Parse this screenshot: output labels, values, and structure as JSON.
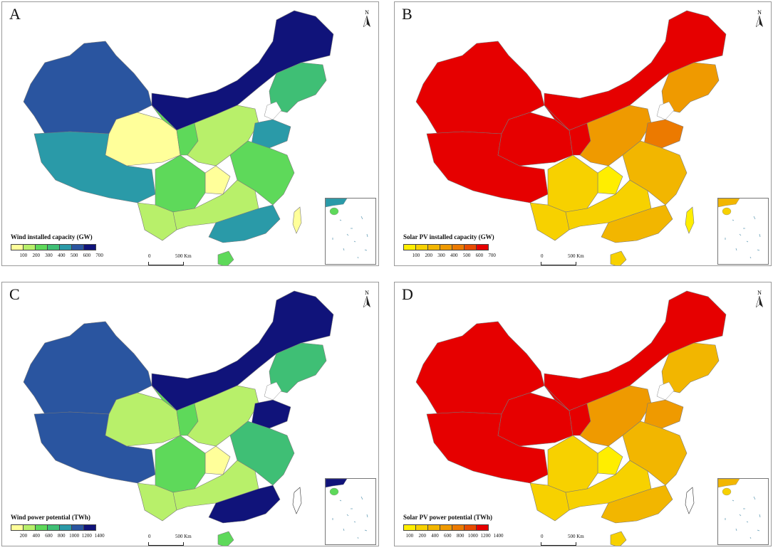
{
  "panels": [
    {
      "letter": "A",
      "legend_title": "Wind installed capacity (GW)",
      "ticks": [
        "100",
        "200",
        "300",
        "400",
        "500",
        "600",
        "700"
      ],
      "palette": [
        "#ffff9a",
        "#b8f06a",
        "#5ed95a",
        "#3fbf75",
        "#2a9aa8",
        "#2a55a0",
        "#10137a"
      ],
      "region_classes": {
        "west": 6,
        "tibet": 5,
        "qinghai": 1,
        "innerMongolia": 7,
        "northeast": 4,
        "gansu": 3,
        "northChina": 2,
        "east": 3,
        "southwest": 3,
        "south": 2,
        "guangdong": 5,
        "hainan": 3,
        "taiwan": 1,
        "shandong": 5,
        "yunnan": 2,
        "center": 1
      }
    },
    {
      "letter": "B",
      "legend_title": "Solar PV installed capacity (GW)",
      "ticks": [
        "100",
        "200",
        "300",
        "400",
        "500",
        "600",
        "700"
      ],
      "palette": [
        "#ffee00",
        "#f7d100",
        "#f2b600",
        "#ef9a00",
        "#ec7a00",
        "#e84c00",
        "#e60000"
      ],
      "region_classes": {
        "west": 7,
        "tibet": 7,
        "qinghai": 7,
        "innerMongolia": 7,
        "northeast": 4,
        "gansu": 7,
        "northChina": 4,
        "east": 3,
        "southwest": 2,
        "south": 2,
        "guangdong": 3,
        "hainan": 2,
        "taiwan": 1,
        "shandong": 5,
        "yunnan": 2,
        "center": 1
      }
    },
    {
      "letter": "C",
      "legend_title": "Wind power potential (TWh)",
      "ticks": [
        "200",
        "400",
        "600",
        "800",
        "1000",
        "1200",
        "1400"
      ],
      "palette": [
        "#ffff9a",
        "#b8f06a",
        "#5ed95a",
        "#3fbf75",
        "#2a9aa8",
        "#2a55a0",
        "#10137a"
      ],
      "region_classes": {
        "west": 6,
        "tibet": 6,
        "qinghai": 2,
        "innerMongolia": 7,
        "northeast": 4,
        "gansu": 3,
        "northChina": 2,
        "east": 4,
        "southwest": 3,
        "south": 2,
        "guangdong": 7,
        "hainan": 3,
        "taiwan": 0,
        "shandong": 7,
        "yunnan": 2,
        "center": 1
      }
    },
    {
      "letter": "D",
      "legend_title": "Solar PV power potential (TWh)",
      "ticks": [
        "100",
        "200",
        "400",
        "600",
        "800",
        "1000",
        "1200",
        "1400"
      ],
      "palette": [
        "#ffee00",
        "#f7d100",
        "#f2b600",
        "#ef9a00",
        "#ec7a00",
        "#e84c00",
        "#e60000"
      ],
      "region_classes": {
        "west": 7,
        "tibet": 7,
        "qinghai": 7,
        "innerMongolia": 7,
        "northeast": 3,
        "gansu": 7,
        "northChina": 4,
        "east": 3,
        "southwest": 2,
        "south": 2,
        "guangdong": 3,
        "hainan": 2,
        "taiwan": 0,
        "shandong": 4,
        "yunnan": 2,
        "center": 1
      }
    }
  ],
  "north_label": "N",
  "scale": {
    "zero": "0",
    "distance": "500 Km"
  }
}
